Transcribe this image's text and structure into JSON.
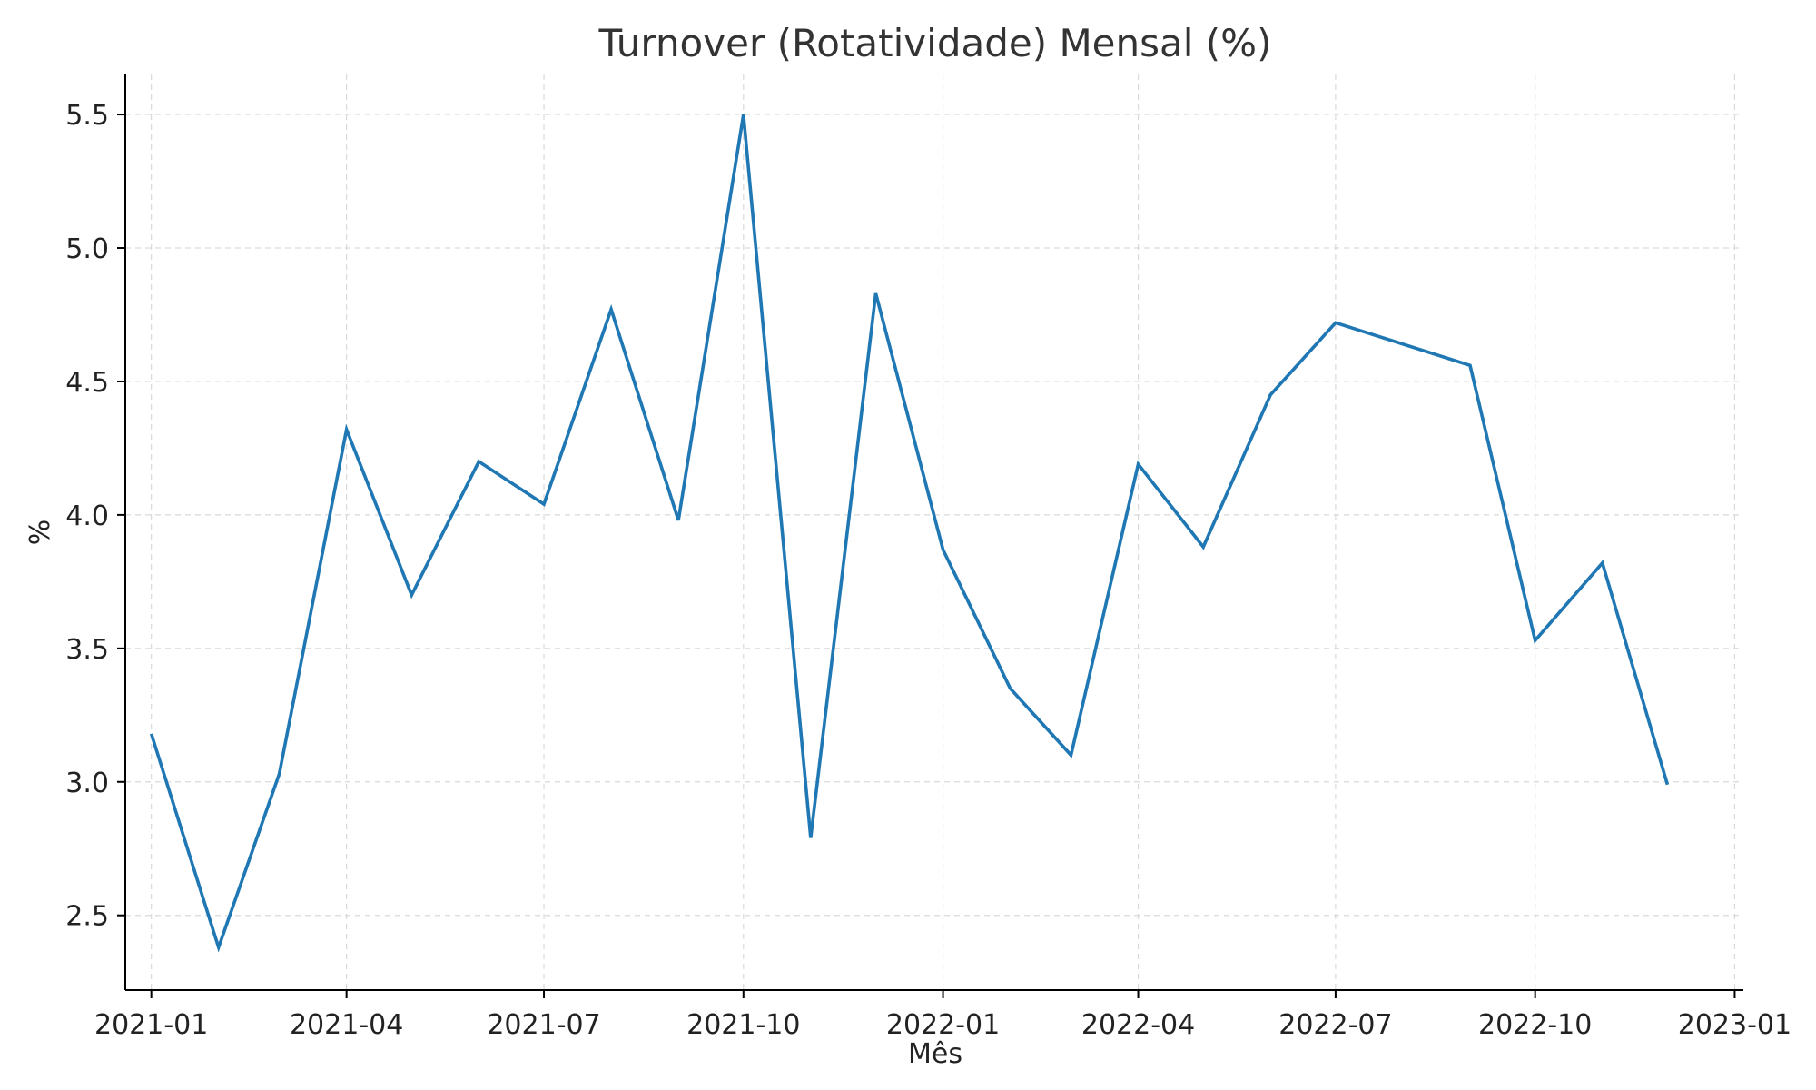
{
  "chart_data": {
    "type": "line",
    "title": "Turnover (Rotatividade) Mensal (%)",
    "xlabel": "Mês",
    "ylabel": "%",
    "x_ticks": [
      "2021-01",
      "2021-04",
      "2021-07",
      "2021-10",
      "2022-01",
      "2022-04",
      "2022-07",
      "2022-10",
      "2023-01"
    ],
    "y_ticks": [
      2.5,
      3.0,
      3.5,
      4.0,
      4.5,
      5.0,
      5.5
    ],
    "xlim": [
      "2020-12-20",
      "2023-01-05"
    ],
    "ylim": [
      2.22,
      5.65
    ],
    "grid": true,
    "color": "#1f77b4",
    "series": [
      {
        "x": [
          "2021-01-01",
          "2021-02-01",
          "2021-03-01",
          "2021-04-01",
          "2021-05-01",
          "2021-06-01",
          "2021-07-01",
          "2021-08-01",
          "2021-09-01",
          "2021-10-01",
          "2021-11-01",
          "2021-12-01",
          "2022-01-01",
          "2022-02-01",
          "2022-03-01",
          "2022-04-01",
          "2022-05-01",
          "2022-06-01",
          "2022-07-01",
          "2022-09-01",
          "2022-10-01",
          "2022-11-01",
          "2022-12-01"
        ],
        "values": [
          3.18,
          2.38,
          3.03,
          4.32,
          3.7,
          4.2,
          4.04,
          4.77,
          3.98,
          5.5,
          2.79,
          4.83,
          3.87,
          3.35,
          3.1,
          4.19,
          3.88,
          4.45,
          4.72,
          4.56,
          3.53,
          3.82,
          2.99
        ]
      }
    ]
  }
}
